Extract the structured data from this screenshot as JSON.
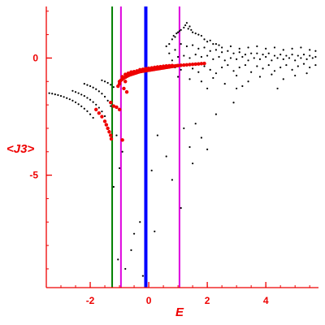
{
  "chart_data": {
    "type": "scatter",
    "title": "",
    "xlabel": "E",
    "ylabel": "<J3>",
    "xlim": [
      -3.5,
      5.8
    ],
    "ylim": [
      -9.8,
      2.2
    ],
    "x_ticks": [
      -2,
      0,
      2,
      4
    ],
    "y_ticks": [
      0,
      -5
    ],
    "x_tick_labels": [
      "-2",
      "0",
      "2",
      "4"
    ],
    "y_tick_labels": [
      "0",
      "-5"
    ],
    "grid": false,
    "colors": {
      "axis": "#ee0000",
      "points_black": "#000000",
      "points_red": "#ee0000",
      "vline_green": "#008000",
      "vline_magenta": "#dd00dd",
      "vline_blue": "#0000ff"
    },
    "vertical_lines": [
      {
        "x": -1.25,
        "color": "#008000"
      },
      {
        "x": -0.95,
        "color": "#dd00dd"
      },
      {
        "x": -0.1,
        "color": "#0000ff"
      },
      {
        "x": 1.05,
        "color": "#dd00dd"
      }
    ],
    "series": [
      {
        "color": "#000000",
        "points": [
          [
            -3.4,
            -1.5
          ],
          [
            -3.3,
            -1.52
          ],
          [
            -3.2,
            -1.55
          ],
          [
            -3.1,
            -1.58
          ],
          [
            -3.0,
            -1.62
          ],
          [
            -2.9,
            -1.66
          ],
          [
            -2.8,
            -1.71
          ],
          [
            -2.7,
            -1.76
          ],
          [
            -2.6,
            -1.82
          ],
          [
            -2.5,
            -1.89
          ],
          [
            -2.4,
            -1.97
          ],
          [
            -2.3,
            -2.06
          ],
          [
            -2.2,
            -2.16
          ],
          [
            -2.1,
            -2.27
          ],
          [
            -2.0,
            -2.4
          ],
          [
            -1.9,
            -2.55
          ],
          [
            -2.6,
            -1.4
          ],
          [
            -2.5,
            -1.45
          ],
          [
            -2.4,
            -1.5
          ],
          [
            -2.3,
            -1.56
          ],
          [
            -2.2,
            -1.62
          ],
          [
            -2.1,
            -1.7
          ],
          [
            -2.0,
            -1.78
          ],
          [
            -1.9,
            -1.88
          ],
          [
            -1.8,
            -1.99
          ],
          [
            -1.7,
            -2.12
          ],
          [
            -1.6,
            -2.28
          ],
          [
            -1.5,
            -2.48
          ],
          [
            -2.2,
            -1.1
          ],
          [
            -2.1,
            -1.15
          ],
          [
            -2.0,
            -1.2
          ],
          [
            -1.9,
            -1.26
          ],
          [
            -1.8,
            -1.33
          ],
          [
            -1.7,
            -1.42
          ],
          [
            -1.6,
            -1.52
          ],
          [
            -1.5,
            -1.65
          ],
          [
            -1.4,
            -1.82
          ],
          [
            -1.3,
            -2.05
          ],
          [
            -1.6,
            -0.95
          ],
          [
            -1.5,
            -1.0
          ],
          [
            -1.4,
            -1.06
          ],
          [
            -1.3,
            -1.14
          ],
          [
            -1.2,
            -1.24
          ],
          [
            -1.2,
            -5.5
          ],
          [
            -1.0,
            -4.7
          ],
          [
            -0.9,
            -4.0
          ],
          [
            -1.1,
            -3.3
          ],
          [
            -1.05,
            -8.6
          ],
          [
            -0.8,
            -9.0
          ],
          [
            -0.5,
            -7.5
          ],
          [
            -0.6,
            -8.2
          ],
          [
            -0.3,
            -7.0
          ],
          [
            -0.2,
            -9.3
          ],
          [
            0.2,
            -7.4
          ],
          [
            0.1,
            -4.8
          ],
          [
            0.3,
            -3.3
          ],
          [
            0.6,
            -4.2
          ],
          [
            0.8,
            -5.2
          ],
          [
            1.1,
            -6.4
          ],
          [
            1.2,
            -3.0
          ],
          [
            1.4,
            -3.8
          ],
          [
            1.5,
            -4.5
          ],
          [
            1.6,
            -2.8
          ],
          [
            1.8,
            -3.4
          ],
          [
            2.0,
            -3.9
          ],
          [
            2.3,
            -2.4
          ],
          [
            2.9,
            -1.9
          ],
          [
            3.0,
            -1.3
          ],
          [
            0.6,
            0.5
          ],
          [
            0.7,
            0.6
          ],
          [
            0.8,
            0.8
          ],
          [
            0.85,
            0.95
          ],
          [
            0.9,
            0.9
          ],
          [
            0.95,
            1.05
          ],
          [
            1.0,
            1.1
          ],
          [
            1.05,
            1.15
          ],
          [
            1.1,
            1.2
          ],
          [
            1.2,
            1.3
          ],
          [
            1.25,
            1.4
          ],
          [
            1.3,
            1.5
          ],
          [
            1.35,
            1.25
          ],
          [
            1.4,
            1.35
          ],
          [
            1.45,
            1.2
          ],
          [
            1.5,
            1.1
          ],
          [
            1.6,
            1.05
          ],
          [
            1.7,
            1.0
          ],
          [
            1.8,
            0.95
          ],
          [
            1.9,
            0.8
          ],
          [
            2.0,
            0.7
          ],
          [
            2.1,
            0.75
          ],
          [
            2.2,
            0.6
          ],
          [
            2.3,
            0.6
          ],
          [
            2.4,
            0.55
          ],
          [
            0.7,
            0.2
          ],
          [
            0.9,
            0.35
          ],
          [
            1.1,
            0.6
          ],
          [
            1.3,
            0.5
          ],
          [
            1.5,
            0.55
          ],
          [
            1.7,
            0.4
          ],
          [
            1.9,
            0.45
          ],
          [
            2.1,
            0.3
          ],
          [
            2.3,
            0.35
          ],
          [
            2.5,
            0.25
          ],
          [
            2.7,
            0.3
          ],
          [
            2.9,
            0.2
          ],
          [
            3.1,
            0.25
          ],
          [
            3.3,
            0.15
          ],
          [
            3.5,
            0.2
          ],
          [
            3.7,
            0.2
          ],
          [
            3.9,
            0.15
          ],
          [
            4.1,
            0.2
          ],
          [
            4.3,
            0.1
          ],
          [
            4.5,
            0.15
          ],
          [
            4.7,
            0.1
          ],
          [
            4.9,
            0.15
          ],
          [
            5.1,
            0.1
          ],
          [
            5.3,
            0.15
          ],
          [
            5.5,
            0.1
          ],
          [
            5.7,
            0.05
          ],
          [
            0.8,
            -0.1
          ],
          [
            1.0,
            0.05
          ],
          [
            1.2,
            0.1
          ],
          [
            1.4,
            0.0
          ],
          [
            1.6,
            0.15
          ],
          [
            1.8,
            0.05
          ],
          [
            2.0,
            0.1
          ],
          [
            2.2,
            -0.05
          ],
          [
            2.4,
            0.05
          ],
          [
            2.6,
            -0.1
          ],
          [
            2.8,
            0.0
          ],
          [
            3.0,
            -0.05
          ],
          [
            3.2,
            0.05
          ],
          [
            3.4,
            -0.1
          ],
          [
            3.6,
            0.0
          ],
          [
            3.8,
            -0.05
          ],
          [
            4.0,
            0.05
          ],
          [
            4.2,
            -0.1
          ],
          [
            4.4,
            0.0
          ],
          [
            4.6,
            -0.05
          ],
          [
            4.8,
            0.0
          ],
          [
            5.0,
            -0.1
          ],
          [
            5.2,
            0.0
          ],
          [
            5.4,
            -0.05
          ],
          [
            5.6,
            0.0
          ],
          [
            0.9,
            -0.4
          ],
          [
            1.1,
            -0.5
          ],
          [
            1.3,
            -0.3
          ],
          [
            1.5,
            -0.45
          ],
          [
            1.7,
            -0.6
          ],
          [
            1.9,
            -0.35
          ],
          [
            2.1,
            -0.5
          ],
          [
            2.3,
            -0.65
          ],
          [
            2.5,
            -0.4
          ],
          [
            2.7,
            -0.3
          ],
          [
            2.9,
            -0.55
          ],
          [
            3.1,
            -0.4
          ],
          [
            3.3,
            -0.3
          ],
          [
            3.5,
            -0.6
          ],
          [
            3.7,
            -0.35
          ],
          [
            3.9,
            -0.45
          ],
          [
            4.1,
            -0.3
          ],
          [
            4.3,
            -0.55
          ],
          [
            4.5,
            -0.4
          ],
          [
            4.7,
            -0.3
          ],
          [
            4.9,
            -0.5
          ],
          [
            5.1,
            -0.35
          ],
          [
            5.3,
            -0.25
          ],
          [
            5.5,
            -0.4
          ],
          [
            5.7,
            -0.3
          ],
          [
            1.0,
            -0.8
          ],
          [
            1.4,
            -0.9
          ],
          [
            1.8,
            -1.0
          ],
          [
            2.2,
            -0.85
          ],
          [
            2.6,
            -1.1
          ],
          [
            3.0,
            -0.75
          ],
          [
            3.4,
            -1.0
          ],
          [
            3.8,
            -0.8
          ],
          [
            4.2,
            -0.7
          ],
          [
            4.6,
            -0.9
          ],
          [
            5.0,
            -0.75
          ],
          [
            5.4,
            -0.65
          ],
          [
            2.0,
            -1.3
          ],
          [
            3.2,
            -1.2
          ],
          [
            4.4,
            -1.3
          ],
          [
            2.5,
            0.45
          ],
          [
            2.8,
            0.5
          ],
          [
            3.1,
            0.4
          ],
          [
            3.4,
            0.45
          ],
          [
            3.7,
            0.5
          ],
          [
            4.0,
            0.4
          ],
          [
            4.3,
            0.45
          ],
          [
            4.6,
            0.35
          ],
          [
            4.9,
            0.4
          ],
          [
            5.2,
            0.45
          ],
          [
            5.5,
            0.35
          ],
          [
            5.7,
            0.3
          ]
        ]
      },
      {
        "color": "#ee0000",
        "points": [
          [
            -1.3,
            -1.9
          ],
          [
            -1.2,
            -2.05
          ],
          [
            -1.1,
            -2.1
          ],
          [
            -1.0,
            -2.2
          ],
          [
            -0.9,
            -3.5
          ],
          [
            -1.8,
            -2.2
          ],
          [
            -1.7,
            -2.35
          ],
          [
            -1.6,
            -2.5
          ],
          [
            -1.5,
            -2.7
          ],
          [
            -1.45,
            -2.85
          ],
          [
            -1.4,
            -3.0
          ],
          [
            -1.35,
            -3.15
          ],
          [
            -1.3,
            -3.3
          ],
          [
            -1.28,
            -3.45
          ],
          [
            -1.0,
            -1.0
          ],
          [
            -0.95,
            -0.95
          ],
          [
            -0.9,
            -0.9
          ],
          [
            -0.85,
            -0.85
          ],
          [
            -0.8,
            -0.82
          ],
          [
            -0.75,
            -0.78
          ],
          [
            -0.7,
            -0.75
          ],
          [
            -0.65,
            -0.72
          ],
          [
            -0.6,
            -0.7
          ],
          [
            -0.55,
            -0.68
          ],
          [
            -0.5,
            -0.66
          ],
          [
            -0.45,
            -0.64
          ],
          [
            -0.4,
            -0.62
          ],
          [
            -0.35,
            -0.6
          ],
          [
            -0.3,
            -0.58
          ],
          [
            -0.25,
            -0.57
          ],
          [
            -0.2,
            -0.56
          ],
          [
            -0.15,
            -0.55
          ],
          [
            -0.1,
            -0.54
          ],
          [
            -0.05,
            -0.53
          ],
          [
            0.0,
            -0.52
          ],
          [
            0.05,
            -0.51
          ],
          [
            0.1,
            -0.5
          ],
          [
            0.15,
            -0.49
          ],
          [
            0.2,
            -0.48
          ],
          [
            0.25,
            -0.47
          ],
          [
            0.3,
            -0.46
          ],
          [
            0.35,
            -0.45
          ],
          [
            0.4,
            -0.44
          ],
          [
            0.45,
            -0.43
          ],
          [
            0.5,
            -0.42
          ],
          [
            0.55,
            -0.41
          ],
          [
            0.6,
            -0.4
          ],
          [
            0.65,
            -0.39
          ],
          [
            0.7,
            -0.38
          ],
          [
            0.75,
            -0.37
          ],
          [
            0.8,
            -0.36
          ],
          [
            0.85,
            -0.35
          ],
          [
            0.9,
            -0.34
          ],
          [
            0.95,
            -0.33
          ],
          [
            1.0,
            -0.32
          ],
          [
            1.1,
            -0.31
          ],
          [
            1.2,
            -0.3
          ],
          [
            1.3,
            -0.29
          ],
          [
            1.4,
            -0.28
          ],
          [
            1.5,
            -0.27
          ],
          [
            1.6,
            -0.26
          ],
          [
            1.7,
            -0.25
          ],
          [
            1.8,
            -0.24
          ],
          [
            1.9,
            -0.23
          ],
          [
            -0.9,
            -0.8
          ],
          [
            -0.8,
            -0.7
          ],
          [
            -0.7,
            -0.65
          ],
          [
            -0.6,
            -0.6
          ],
          [
            -0.5,
            -0.58
          ],
          [
            -0.4,
            -0.55
          ],
          [
            -0.3,
            -0.5
          ],
          [
            -0.2,
            -0.48
          ],
          [
            -0.1,
            -0.45
          ],
          [
            0.0,
            -0.44
          ],
          [
            0.1,
            -0.42
          ],
          [
            0.2,
            -0.4
          ],
          [
            0.3,
            -0.38
          ],
          [
            0.4,
            -0.37
          ],
          [
            0.5,
            -0.35
          ],
          [
            0.6,
            -0.34
          ],
          [
            0.7,
            -0.33
          ],
          [
            0.8,
            -0.32
          ],
          [
            -0.8,
            -1.0
          ],
          [
            -0.75,
            -1.45
          ],
          [
            -0.85,
            -1.3
          ],
          [
            -1.05,
            -1.2
          ],
          [
            -1.0,
            -1.1
          ]
        ]
      }
    ]
  }
}
